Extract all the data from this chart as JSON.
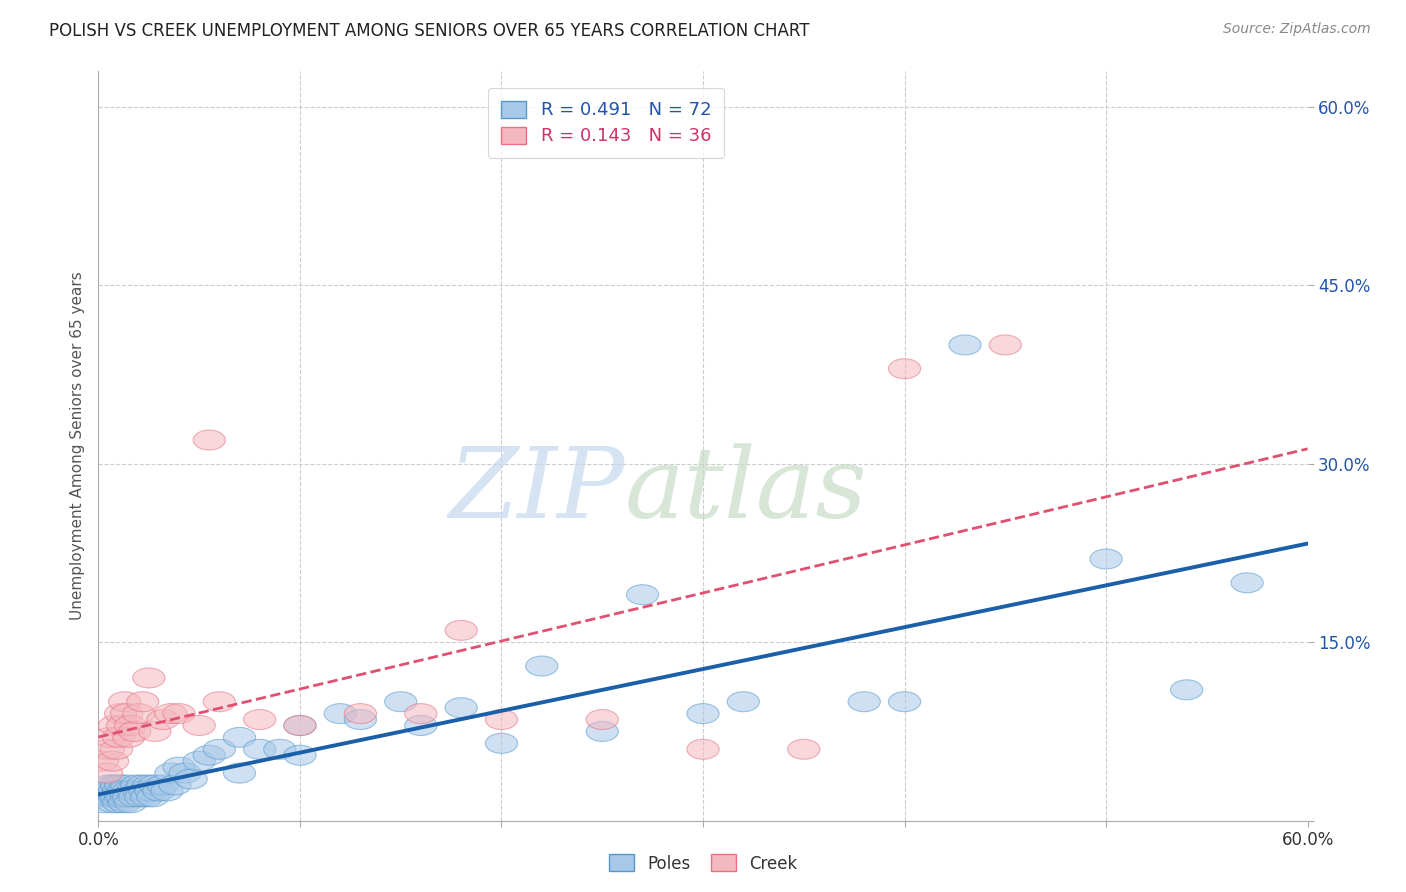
{
  "title": "POLISH VS CREEK UNEMPLOYMENT AMONG SENIORS OVER 65 YEARS CORRELATION CHART",
  "source": "Source: ZipAtlas.com",
  "ylabel": "Unemployment Among Seniors over 65 years",
  "xlim": [
    0,
    0.6
  ],
  "ylim": [
    0,
    0.63
  ],
  "x_ticks": [
    0.0,
    0.1,
    0.2,
    0.3,
    0.4,
    0.5,
    0.6
  ],
  "x_tick_labels": [
    "0.0%",
    "",
    "",
    "",
    "",
    "",
    "60.0%"
  ],
  "y_ticks": [
    0.0,
    0.15,
    0.3,
    0.45,
    0.6
  ],
  "y_tick_labels": [
    "",
    "15.0%",
    "30.0%",
    "45.0%",
    "60.0%"
  ],
  "background_color": "#ffffff",
  "grid_color": "#cccccc",
  "legend_r1": "R = 0.491",
  "legend_n1": "N = 72",
  "legend_r2": "R = 0.143",
  "legend_n2": "N = 36",
  "poles_color": "#a8c8e8",
  "poles_edge_color": "#5599cc",
  "creek_color": "#f4b8c0",
  "creek_edge_color": "#e87080",
  "poles_x": [
    0.002,
    0.003,
    0.004,
    0.005,
    0.005,
    0.006,
    0.006,
    0.007,
    0.007,
    0.008,
    0.008,
    0.009,
    0.009,
    0.01,
    0.01,
    0.011,
    0.011,
    0.012,
    0.012,
    0.013,
    0.013,
    0.014,
    0.014,
    0.015,
    0.015,
    0.016,
    0.017,
    0.018,
    0.019,
    0.02,
    0.021,
    0.022,
    0.023,
    0.024,
    0.025,
    0.026,
    0.027,
    0.028,
    0.03,
    0.032,
    0.034,
    0.036,
    0.038,
    0.04,
    0.043,
    0.046,
    0.05,
    0.055,
    0.06,
    0.07,
    0.08,
    0.09,
    0.1,
    0.12,
    0.15,
    0.18,
    0.22,
    0.27,
    0.32,
    0.38,
    0.43,
    0.5,
    0.54,
    0.57,
    0.4,
    0.3,
    0.25,
    0.2,
    0.16,
    0.13,
    0.1,
    0.07
  ],
  "poles_y": [
    0.02,
    0.015,
    0.025,
    0.02,
    0.03,
    0.02,
    0.025,
    0.015,
    0.03,
    0.02,
    0.025,
    0.03,
    0.02,
    0.025,
    0.015,
    0.02,
    0.03,
    0.025,
    0.02,
    0.015,
    0.025,
    0.02,
    0.03,
    0.025,
    0.02,
    0.015,
    0.025,
    0.02,
    0.03,
    0.025,
    0.02,
    0.03,
    0.025,
    0.02,
    0.03,
    0.025,
    0.02,
    0.03,
    0.025,
    0.03,
    0.025,
    0.04,
    0.03,
    0.045,
    0.04,
    0.035,
    0.05,
    0.055,
    0.06,
    0.07,
    0.06,
    0.06,
    0.08,
    0.09,
    0.1,
    0.095,
    0.13,
    0.19,
    0.1,
    0.1,
    0.4,
    0.22,
    0.11,
    0.2,
    0.1,
    0.09,
    0.075,
    0.065,
    0.08,
    0.085,
    0.055,
    0.04
  ],
  "creek_x": [
    0.002,
    0.004,
    0.005,
    0.006,
    0.007,
    0.008,
    0.009,
    0.01,
    0.011,
    0.012,
    0.013,
    0.014,
    0.015,
    0.016,
    0.018,
    0.02,
    0.022,
    0.025,
    0.028,
    0.032,
    0.036,
    0.04,
    0.05,
    0.06,
    0.08,
    0.1,
    0.13,
    0.16,
    0.2,
    0.25,
    0.3,
    0.35,
    0.4,
    0.45,
    0.18,
    0.055
  ],
  "creek_y": [
    0.05,
    0.04,
    0.06,
    0.07,
    0.05,
    0.08,
    0.06,
    0.07,
    0.09,
    0.08,
    0.1,
    0.09,
    0.07,
    0.08,
    0.075,
    0.09,
    0.1,
    0.12,
    0.075,
    0.085,
    0.09,
    0.09,
    0.08,
    0.1,
    0.085,
    0.08,
    0.09,
    0.09,
    0.085,
    0.085,
    0.06,
    0.06,
    0.38,
    0.4,
    0.16,
    0.32
  ]
}
